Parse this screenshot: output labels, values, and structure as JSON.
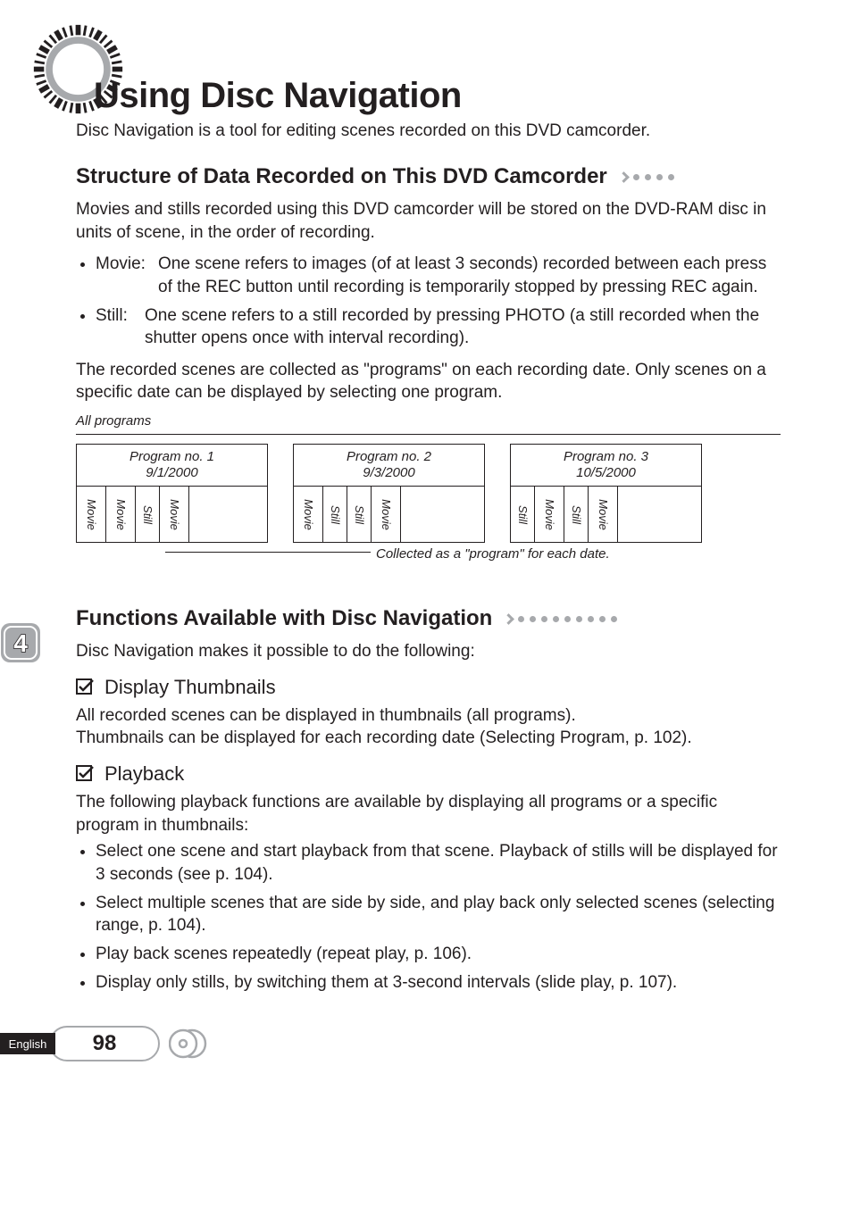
{
  "colors": {
    "text": "#231f20",
    "gray": "#a7a9ac",
    "white": "#ffffff",
    "black": "#231f20"
  },
  "sunburst": {
    "outer_radius": 50,
    "inner_gray_radius": 38,
    "inner_white_radius": 30,
    "tick_count": 36,
    "tick_color": "#231f20",
    "ring_color": "#a7a9ac"
  },
  "title": "Using Disc Navigation",
  "intro": "Disc Navigation is a tool for editing scenes recorded on this DVD camcorder.",
  "section1": {
    "heading": "Structure of Data Recorded on This DVD Camcorder",
    "trailing_dot_count": 5,
    "p1": "Movies and stills recorded using this DVD camcorder will be stored on the DVD-RAM disc in units of scene, in the order of recording.",
    "bullets": [
      {
        "label": "Movie:",
        "label_width": "70px",
        "text": "One scene refers to images (of at least 3 seconds) recorded between each press of the REC button until recording is temporarily stopped by pressing REC again."
      },
      {
        "label": "Still:",
        "label_width": "55px",
        "text": "One scene refers to a still recorded by pressing PHOTO (a still recorded when the shutter opens once with interval recording)."
      }
    ],
    "p2": "The recorded scenes are collected as \"programs\" on each recording date. Only scenes on a specific date can be displayed by selecting one program."
  },
  "diagram": {
    "all_label": "All programs",
    "programs": [
      {
        "title": "Program no. 1",
        "date": "9/1/2000",
        "cells": [
          "Movie",
          "Movie",
          "Still",
          "Movie"
        ]
      },
      {
        "title": "Program no. 2",
        "date": "9/3/2000",
        "cells": [
          "Movie",
          "Still",
          "Still",
          "Movie"
        ]
      },
      {
        "title": "Program no. 3",
        "date": "10/5/2000",
        "cells": [
          "Still",
          "Movie",
          "Still",
          "Movie"
        ]
      }
    ],
    "caption": "Collected as a \"program\" for each date."
  },
  "chapter_badge": {
    "number": "4"
  },
  "language_tab": "English",
  "section2": {
    "heading": "Functions Available with Disc Navigation",
    "trailing_dot_count": 10,
    "intro": "Disc Navigation makes it possible to do the following:",
    "sub1": {
      "heading": "Display Thumbnails",
      "p1": "All recorded scenes can be displayed in thumbnails (all programs).",
      "p2": "Thumbnails can be displayed for each recording date (Selecting Program, p. 102)."
    },
    "sub2": {
      "heading": "Playback",
      "intro": "The following playback functions are available by displaying all programs or a specific program in thumbnails:",
      "bullets": [
        "Select one scene and start playback from that scene. Playback of stills will be displayed for 3 seconds (see p. 104).",
        "Select multiple scenes that are side by side, and play back only selected scenes (selecting range, p. 104).",
        "Play back scenes repeatedly (repeat play, p. 106).",
        "Display only stills, by switching them at 3-second intervals (slide play, p. 107)."
      ]
    }
  },
  "page_number": "98"
}
